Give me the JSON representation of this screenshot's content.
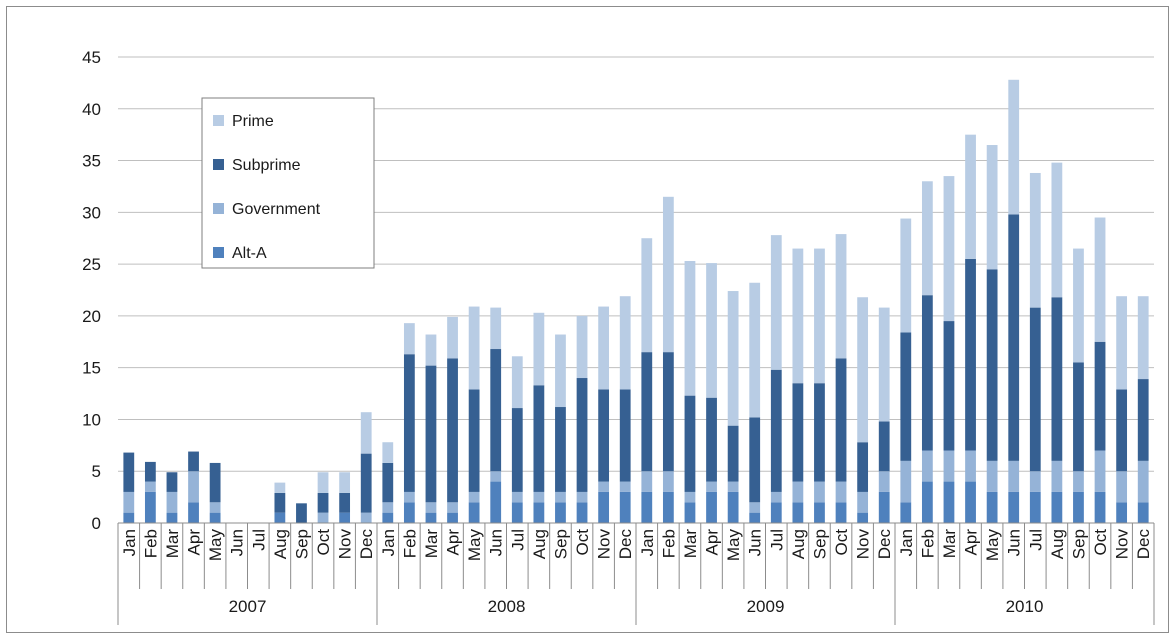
{
  "chart_data": {
    "type": "bar",
    "stacked": true,
    "title": "",
    "xlabel": "",
    "ylabel": "",
    "ylim": [
      0,
      45
    ],
    "yticks": [
      0,
      5,
      10,
      15,
      20,
      25,
      30,
      35,
      40,
      45
    ],
    "grid": true,
    "legend_position": "top-left",
    "categories": [
      "Jan",
      "Feb",
      "Mar",
      "Apr",
      "May",
      "Jun",
      "Jul",
      "Aug",
      "Sep",
      "Oct",
      "Nov",
      "Dec",
      "Jan",
      "Feb",
      "Mar",
      "Apr",
      "May",
      "Jun",
      "Jul",
      "Aug",
      "Sep",
      "Oct",
      "Nov",
      "Dec",
      "Jan",
      "Feb",
      "Mar",
      "Apr",
      "May",
      "Jun",
      "Jul",
      "Aug",
      "Sep",
      "Oct",
      "Nov",
      "Dec",
      "Jan",
      "Feb",
      "Mar",
      "Apr",
      "May",
      "Jun",
      "Jul",
      "Aug",
      "Sep",
      "Oct",
      "Nov",
      "Dec"
    ],
    "groups": [
      {
        "label": "2007",
        "count": 12
      },
      {
        "label": "2008",
        "count": 12
      },
      {
        "label": "2009",
        "count": 12
      },
      {
        "label": "2010",
        "count": 12
      }
    ],
    "series": [
      {
        "name": "Alt-A",
        "color": "#4f81bd",
        "values": [
          1,
          3,
          1,
          2,
          1,
          0,
          0,
          1,
          0,
          0,
          1,
          0,
          1,
          2,
          1,
          1,
          2,
          4,
          2,
          2,
          2,
          2,
          3,
          3,
          3,
          3,
          2,
          3,
          3,
          1,
          2,
          2,
          2,
          2,
          1,
          3,
          2,
          4,
          4,
          4,
          3,
          3,
          3,
          3,
          3,
          3,
          2,
          2
        ]
      },
      {
        "name": "Government",
        "color": "#95b3d7",
        "values": [
          2,
          1,
          2,
          3,
          1,
          0,
          0,
          0,
          0,
          1,
          0,
          1,
          1,
          1,
          1,
          1,
          1,
          1,
          1,
          1,
          1,
          1,
          1,
          1,
          2,
          2,
          1,
          1,
          1,
          1,
          1,
          2,
          2,
          2,
          2,
          2,
          4,
          3,
          3,
          3,
          3,
          3,
          2,
          3,
          2,
          4,
          3,
          4
        ]
      },
      {
        "name": "Subprime",
        "color": "#366092",
        "values": [
          3.8,
          1.9,
          1.9,
          1.9,
          3.8,
          0,
          0,
          1.9,
          1.9,
          1.9,
          1.9,
          5.7,
          3.8,
          13.3,
          13.2,
          13.9,
          9.9,
          11.8,
          8.1,
          10.3,
          8.2,
          11.0,
          8.9,
          8.9,
          11.5,
          11.5,
          9.3,
          8.1,
          5.4,
          8.2,
          11.8,
          9.5,
          9.5,
          11.9,
          4.8,
          4.8,
          12.4,
          15.0,
          12.5,
          18.5,
          18.5,
          23.8,
          15.8,
          15.8,
          10.5,
          10.5,
          7.9,
          7.9
        ]
      },
      {
        "name": "Prime",
        "color": "#b8cce4",
        "values": [
          0,
          0,
          0,
          0,
          0,
          0,
          0,
          1,
          0,
          2,
          2,
          4,
          2,
          3,
          3,
          4,
          8,
          4,
          5,
          7,
          7,
          6,
          8,
          9,
          11,
          15,
          13,
          13,
          13,
          13,
          13,
          13,
          13,
          12,
          14,
          11,
          11,
          11,
          14,
          12,
          12,
          13,
          13,
          13,
          11,
          12,
          9,
          8
        ]
      }
    ],
    "legend": [
      "Prime",
      "Subprime",
      "Government",
      "Alt-A"
    ]
  }
}
